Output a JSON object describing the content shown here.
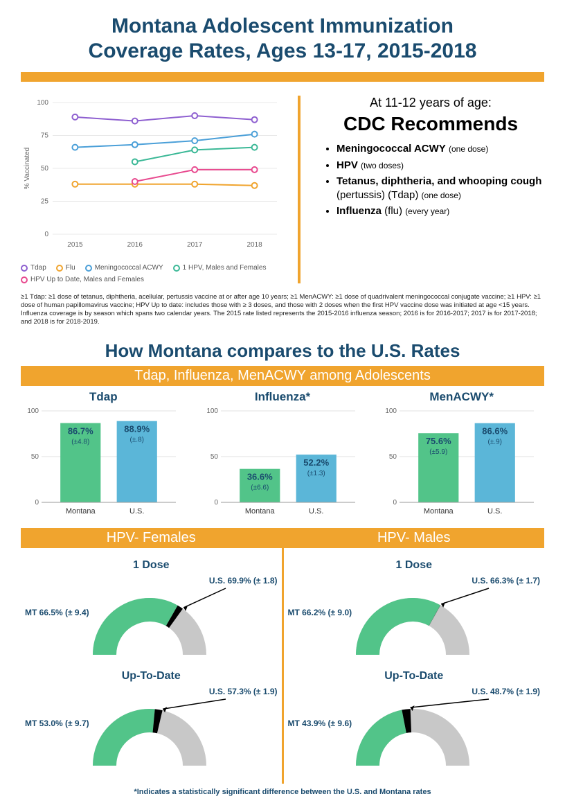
{
  "title_line1": "Montana Adolescent Immunization",
  "title_line2": "Coverage Rates, Ages 13-17, 2015-2018",
  "line_chart": {
    "y_label": "% Vaccinated",
    "y_ticks": [
      0,
      25,
      50,
      75,
      100
    ],
    "x_ticks": [
      "2015",
      "2016",
      "2017",
      "2018"
    ],
    "grid_color": "#e8e8e8",
    "background": "#ffffff",
    "series": [
      {
        "name": "Tdap",
        "color": "#8e5fd0",
        "values": [
          89,
          86,
          90,
          87
        ]
      },
      {
        "name": "Flu",
        "color": "#f0a42e",
        "values": [
          38,
          38,
          38,
          37
        ]
      },
      {
        "name": "Meningococcal ACWY",
        "color": "#4a9fd8",
        "values": [
          66,
          68,
          71,
          76
        ]
      },
      {
        "name": "1 HPV, Males and Females",
        "color": "#3ab896",
        "values": [
          null,
          55,
          64,
          66
        ]
      },
      {
        "name": "HPV Up to Date, Males and Females",
        "color": "#e84a8f",
        "values": [
          null,
          40,
          49,
          49
        ]
      }
    ]
  },
  "cdc": {
    "lead": "At 11-12 years of age:",
    "head": "CDC Recommends",
    "items": [
      {
        "bold": "Meningococcal ACWY",
        "note": "(one dose)"
      },
      {
        "bold": "HPV",
        "note": "(two doses)"
      },
      {
        "bold": "Tetanus, diphtheria, and whooping cough",
        "plain": "(pertussis) (Tdap)",
        "note": "(one dose)"
      },
      {
        "bold": "Influenza",
        "plain": "(flu)",
        "note": "(every year)"
      }
    ]
  },
  "footnote": "≥1 Tdap: ≥1 dose of tetanus, diphtheria, acellular, pertussis vaccine at or after age 10 years;  ≥1 MenACWY: ≥1 dose of quadrivalent meningococcal conjugate vaccine;  ≥1 HPV: ≥1 dose of human papillomavirus vaccine;  HPV Up to date: includes those with ≥ 3 doses, and those with 2 doses when the first HPV vaccine dose was initiated at age <15 years. Influenza coverage is by season which spans two calendar years. The 2015 rate listed represents the 2015-2016 influenza season; 2016 is for 2016-2017; 2017 is for 2017-2018; and 2018 is for 2018-2019.",
  "compare_heading": "How Montana compares to the U.S. Rates",
  "sub_heading": "Tdap, Influenza, MenACWY among Adolescents",
  "bars": {
    "y_ticks": [
      0,
      50,
      100
    ],
    "mt_color": "#52c489",
    "us_color": "#5bb6d8",
    "label_color": "#1a4b6e",
    "charts": [
      {
        "title": "Tdap",
        "mt_val": 86.7,
        "mt_ci": "(±4.8)",
        "mt_label": "86.7%",
        "us_val": 88.9,
        "us_ci": "(±.8)",
        "us_label": "88.9%"
      },
      {
        "title": "Influenza*",
        "mt_val": 36.6,
        "mt_ci": "(±6.6)",
        "mt_label": "36.6%",
        "us_val": 52.2,
        "us_ci": "(±1.3)",
        "us_label": "52.2%"
      },
      {
        "title": "MenACWY*",
        "mt_val": 75.6,
        "mt_ci": "(±5.9)",
        "mt_label": "75.6%",
        "us_val": 86.6,
        "us_ci": "(±.9)",
        "us_label": "86.6%"
      }
    ],
    "x_labels": [
      "Montana",
      "U.S."
    ]
  },
  "hpv": {
    "female_head": "HPV- Females",
    "male_head": "HPV- Males",
    "mt_color": "#52c489",
    "us_color": "#c8c8c8",
    "gap_color": "#000000",
    "gauges": {
      "female": [
        {
          "title": "1 Dose",
          "mt": 66.5,
          "mt_label": "MT 66.5% (± 9.4)",
          "us": 69.9,
          "us_label": "U.S. 69.9% (± 1.8)"
        },
        {
          "title": "Up-To-Date",
          "mt": 53.0,
          "mt_label": "MT 53.0% (± 9.7)",
          "us": 57.3,
          "us_label": "U.S. 57.3% (± 1.9)"
        }
      ],
      "male": [
        {
          "title": "1 Dose",
          "mt": 66.2,
          "mt_label": "MT 66.2% (± 9.0)",
          "us": 66.3,
          "us_label": "U.S. 66.3% (± 1.7)"
        },
        {
          "title": "Up-To-Date",
          "mt": 43.9,
          "mt_label": "MT 43.9% (± 9.6)",
          "us": 48.7,
          "us_label": "U.S. 48.7% (± 1.9)"
        }
      ]
    }
  },
  "sig_note": "*Indicates a statistically significant difference between the U.S. and Montana rates"
}
